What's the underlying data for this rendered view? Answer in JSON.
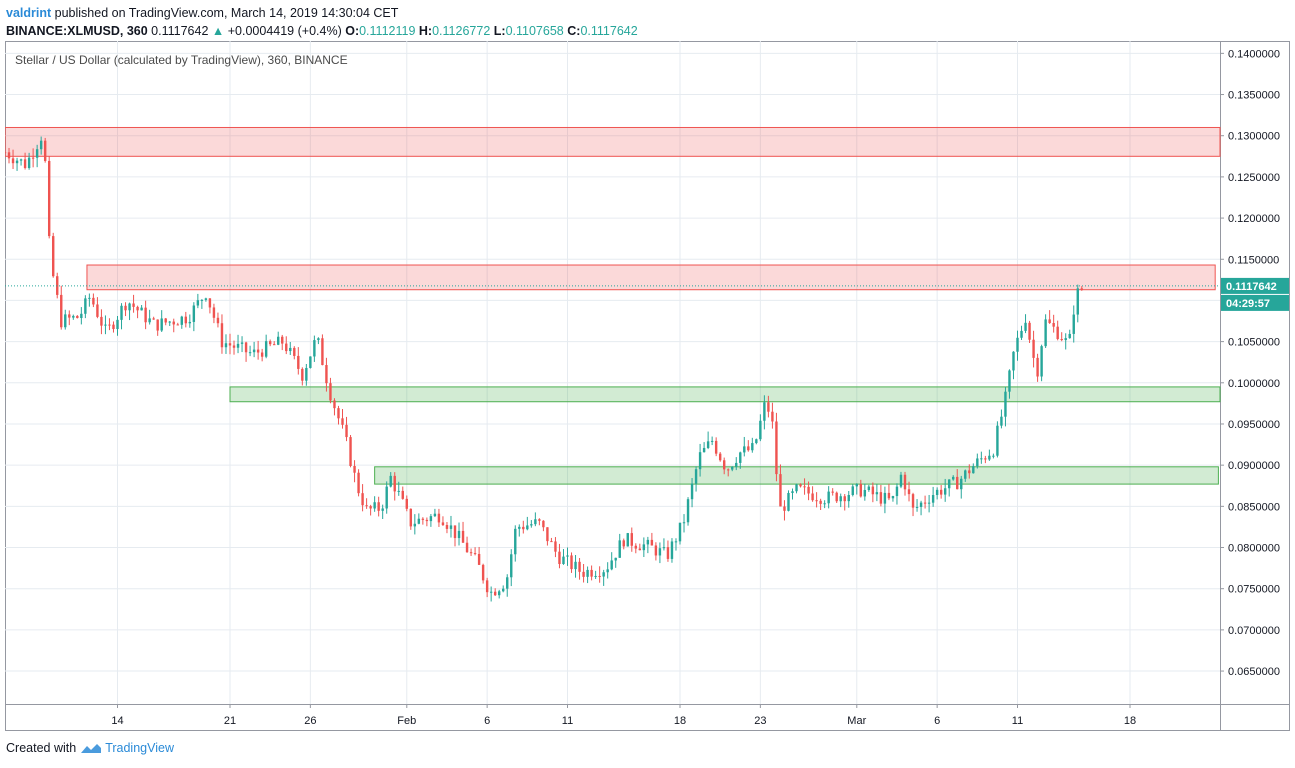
{
  "header": {
    "author": "valdrint",
    "published_text": "published on TradingView.com, March 14, 2019 14:30:04 CET",
    "symbol": "BINANCE:XLMUSD, 360",
    "last": "0.1117642",
    "change": "+0.0004419 (+0.4%)",
    "o_label": "O:",
    "o": "0.1112119",
    "h_label": "H:",
    "h": "0.1126772",
    "l_label": "L:",
    "l": "0.1107658",
    "c_label": "C:",
    "c": "0.1117642"
  },
  "footer": {
    "created_with": "Created with",
    "brand": "TradingView"
  },
  "colors": {
    "up": "#26a69a",
    "down": "#ef5350",
    "resistance": "#ef5350",
    "support": "#4caf50",
    "grid": "#e6ebf0"
  },
  "icons": {
    "up_arrow": "triangle-up-icon",
    "logo": "tradingview-logo-icon"
  },
  "chart_data": {
    "type": "candlestick",
    "title": "Stellar / US Dollar (calculated by TradingView), 360, BINANCE",
    "interval": "360",
    "ylim": [
      0.061,
      0.1415
    ],
    "y_ticks": [
      "0.1400000",
      "0.1350000",
      "0.1300000",
      "0.1250000",
      "0.1200000",
      "0.1150000",
      "0.1100000",
      "0.1050000",
      "0.1000000",
      "0.0950000",
      "0.0900000",
      "0.0850000",
      "0.0800000",
      "0.0750000",
      "0.0700000",
      "0.0650000"
    ],
    "x_ticks": [
      {
        "label": "14",
        "day": 14
      },
      {
        "label": "21",
        "day": 21
      },
      {
        "label": "26",
        "day": 26
      },
      {
        "label": "Feb",
        "day": 32
      },
      {
        "label": "6",
        "day": 37
      },
      {
        "label": "11",
        "day": 42
      },
      {
        "label": "18",
        "day": 49
      },
      {
        "label": "23",
        "day": 54
      },
      {
        "label": "Mar",
        "day": 60
      },
      {
        "label": "6",
        "day": 65
      },
      {
        "label": "11",
        "day": 70
      },
      {
        "label": "18",
        "day": 77
      }
    ],
    "x_range_days": [
      7.0,
      82.6
    ],
    "last_price": "0.1117642",
    "countdown": "04:29:57",
    "zones": [
      {
        "kind": "resistance",
        "from_day": 7.0,
        "to_day": 82.6,
        "low": 0.1275,
        "high": 0.131
      },
      {
        "kind": "resistance",
        "from_day": 12.1,
        "to_day": 82.3,
        "low": 0.1113,
        "high": 0.1143
      },
      {
        "kind": "support",
        "from_day": 21.0,
        "to_day": 82.6,
        "low": 0.0977,
        "high": 0.0995
      },
      {
        "kind": "support",
        "from_day": 30.0,
        "to_day": 82.5,
        "low": 0.0877,
        "high": 0.0898
      }
    ],
    "anchors": [
      {
        "day": 7.0,
        "price": 0.128
      },
      {
        "day": 8.3,
        "price": 0.1265
      },
      {
        "day": 9.4,
        "price": 0.1305
      },
      {
        "day": 9.8,
        "price": 0.115
      },
      {
        "day": 10.5,
        "price": 0.1075
      },
      {
        "day": 11.6,
        "price": 0.108
      },
      {
        "day": 12.3,
        "price": 0.1105
      },
      {
        "day": 13.3,
        "price": 0.106
      },
      {
        "day": 14.6,
        "price": 0.11
      },
      {
        "day": 16.3,
        "price": 0.107
      },
      {
        "day": 18.4,
        "price": 0.108
      },
      {
        "day": 19.5,
        "price": 0.111
      },
      {
        "day": 20.5,
        "price": 0.105
      },
      {
        "day": 22.4,
        "price": 0.1035
      },
      {
        "day": 24.3,
        "price": 0.105
      },
      {
        "day": 25.5,
        "price": 0.101
      },
      {
        "day": 26.4,
        "price": 0.1055
      },
      {
        "day": 27.2,
        "price": 0.099
      },
      {
        "day": 28.2,
        "price": 0.093
      },
      {
        "day": 28.9,
        "price": 0.0875
      },
      {
        "day": 29.5,
        "price": 0.0845
      },
      {
        "day": 30.4,
        "price": 0.0848
      },
      {
        "day": 31.0,
        "price": 0.0885
      },
      {
        "day": 31.6,
        "price": 0.086
      },
      {
        "day": 32.2,
        "price": 0.083
      },
      {
        "day": 34.1,
        "price": 0.084
      },
      {
        "day": 35.3,
        "price": 0.081
      },
      {
        "day": 36.4,
        "price": 0.078
      },
      {
        "day": 37.2,
        "price": 0.0745
      },
      {
        "day": 38.2,
        "price": 0.076
      },
      {
        "day": 38.8,
        "price": 0.0825
      },
      {
        "day": 40.2,
        "price": 0.083
      },
      {
        "day": 41.4,
        "price": 0.079
      },
      {
        "day": 42.9,
        "price": 0.077
      },
      {
        "day": 44.4,
        "price": 0.0775
      },
      {
        "day": 45.5,
        "price": 0.081
      },
      {
        "day": 47.2,
        "price": 0.08
      },
      {
        "day": 48.2,
        "price": 0.079
      },
      {
        "day": 49.2,
        "price": 0.083
      },
      {
        "day": 50.2,
        "price": 0.091
      },
      {
        "day": 51.0,
        "price": 0.093
      },
      {
        "day": 51.9,
        "price": 0.0895
      },
      {
        "day": 52.7,
        "price": 0.0915
      },
      {
        "day": 53.6,
        "price": 0.092
      },
      {
        "day": 54.3,
        "price": 0.0975
      },
      {
        "day": 54.7,
        "price": 0.096
      },
      {
        "day": 55.2,
        "price": 0.0845
      },
      {
        "day": 56.3,
        "price": 0.087
      },
      {
        "day": 58.1,
        "price": 0.086
      },
      {
        "day": 60.3,
        "price": 0.087
      },
      {
        "day": 62.2,
        "price": 0.0855
      },
      {
        "day": 62.8,
        "price": 0.089
      },
      {
        "day": 63.5,
        "price": 0.0845
      },
      {
        "day": 64.7,
        "price": 0.0865
      },
      {
        "day": 66.3,
        "price": 0.088
      },
      {
        "day": 67.3,
        "price": 0.09
      },
      {
        "day": 68.5,
        "price": 0.092
      },
      {
        "day": 69.2,
        "price": 0.0975
      },
      {
        "day": 69.8,
        "price": 0.104
      },
      {
        "day": 70.5,
        "price": 0.108
      },
      {
        "day": 71.2,
        "price": 0.101
      },
      {
        "day": 71.7,
        "price": 0.1075
      },
      {
        "day": 72.6,
        "price": 0.106
      },
      {
        "day": 73.2,
        "price": 0.1045
      },
      {
        "day": 73.6,
        "price": 0.1105
      },
      {
        "day": 74.1,
        "price": 0.1117642
      }
    ]
  }
}
